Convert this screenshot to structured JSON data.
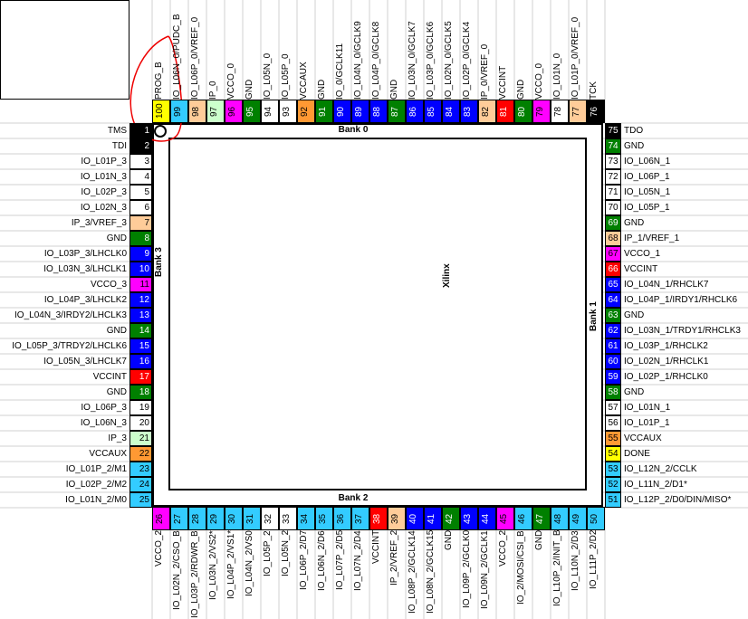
{
  "colors": {
    "black": "#000000",
    "white": "#ffffff",
    "green": "#008000",
    "blue": "#0000ff",
    "red": "#ff0000",
    "orange": "#ff9933",
    "peach": "#ffcc99",
    "magenta": "#ff00ff",
    "yellow": "#ffff00",
    "lime": "#ccffcc",
    "cyan": "#33ccff"
  },
  "banks": {
    "bank0": "Bank 0",
    "bank1": "Bank 1",
    "bank2": "Bank 2",
    "bank3": "Bank 3"
  },
  "center_label": "Xilinx",
  "left_pins": [
    {
      "label": "TMS",
      "num": "1",
      "color": "black"
    },
    {
      "label": "TDI",
      "num": "2",
      "color": "black"
    },
    {
      "label": "IO_L01P_3",
      "num": "3",
      "color": "white"
    },
    {
      "label": "IO_L01N_3",
      "num": "4",
      "color": "white"
    },
    {
      "label": "IO_L02P_3",
      "num": "5",
      "color": "white"
    },
    {
      "label": "IO_L02N_3",
      "num": "6",
      "color": "white"
    },
    {
      "label": "IP_3/VREF_3",
      "num": "7",
      "color": "peach"
    },
    {
      "label": "GND",
      "num": "8",
      "color": "green"
    },
    {
      "label": "IO_L03P_3/LHCLK0",
      "num": "9",
      "color": "blue"
    },
    {
      "label": "IO_L03N_3/LHCLK1",
      "num": "10",
      "color": "blue"
    },
    {
      "label": "VCCO_3",
      "num": "11",
      "color": "magenta"
    },
    {
      "label": "IO_L04P_3/LHCLK2",
      "num": "12",
      "color": "blue"
    },
    {
      "label": "IO_L04N_3/IRDY2/LHCLK3",
      "num": "13",
      "color": "blue"
    },
    {
      "label": "GND",
      "num": "14",
      "color": "green"
    },
    {
      "label": "IO_L05P_3/TRDY2/LHCLK6",
      "num": "15",
      "color": "blue"
    },
    {
      "label": "IO_L05N_3/LHCLK7",
      "num": "16",
      "color": "blue"
    },
    {
      "label": "VCCINT",
      "num": "17",
      "color": "red"
    },
    {
      "label": "GND",
      "num": "18",
      "color": "green"
    },
    {
      "label": "IO_L06P_3",
      "num": "19",
      "color": "white"
    },
    {
      "label": "IO_L06N_3",
      "num": "20",
      "color": "white"
    },
    {
      "label": "IP_3",
      "num": "21",
      "color": "lime"
    },
    {
      "label": "VCCAUX",
      "num": "22",
      "color": "orange"
    },
    {
      "label": "IO_L01P_2/M1",
      "num": "23",
      "color": "cyan"
    },
    {
      "label": "IO_L02P_2/M2",
      "num": "24",
      "color": "cyan"
    },
    {
      "label": "IO_L01N_2/M0",
      "num": "25",
      "color": "cyan"
    }
  ],
  "right_pins": [
    {
      "label": "TDO",
      "num": "75",
      "color": "black"
    },
    {
      "label": "GND",
      "num": "74",
      "color": "green"
    },
    {
      "label": "IO_L06N_1",
      "num": "73",
      "color": "white"
    },
    {
      "label": "IO_L06P_1",
      "num": "72",
      "color": "white"
    },
    {
      "label": "IO_L05N_1",
      "num": "71",
      "color": "white"
    },
    {
      "label": "IO_L05P_1",
      "num": "70",
      "color": "white"
    },
    {
      "label": "GND",
      "num": "69",
      "color": "green"
    },
    {
      "label": "IP_1/VREF_1",
      "num": "68",
      "color": "peach"
    },
    {
      "label": "VCCO_1",
      "num": "67",
      "color": "magenta"
    },
    {
      "label": "VCCINT",
      "num": "66",
      "color": "red"
    },
    {
      "label": "IO_L04N_1/RHCLK7",
      "num": "65",
      "color": "blue"
    },
    {
      "label": "IO_L04P_1/IRDY1/RHCLK6",
      "num": "64",
      "color": "blue"
    },
    {
      "label": "GND",
      "num": "63",
      "color": "green"
    },
    {
      "label": "IO_L03N_1/TRDY1/RHCLK3",
      "num": "62",
      "color": "blue"
    },
    {
      "label": "IO_L03P_1/RHCLK2",
      "num": "61",
      "color": "blue"
    },
    {
      "label": "IO_L02N_1/RHCLK1",
      "num": "60",
      "color": "blue"
    },
    {
      "label": "IO_L02P_1/RHCLK0",
      "num": "59",
      "color": "blue"
    },
    {
      "label": "GND",
      "num": "58",
      "color": "green"
    },
    {
      "label": "IO_L01N_1",
      "num": "57",
      "color": "white"
    },
    {
      "label": "IO_L01P_1",
      "num": "56",
      "color": "white"
    },
    {
      "label": "VCCAUX",
      "num": "55",
      "color": "orange"
    },
    {
      "label": "DONE",
      "num": "54",
      "color": "yellow"
    },
    {
      "label": "IO_L12N_2/CCLK",
      "num": "53",
      "color": "cyan"
    },
    {
      "label": "IO_L11N_2/D1*",
      "num": "52",
      "color": "cyan"
    },
    {
      "label": "IO_L12P_2/D0/DIN/MISO*",
      "num": "51",
      "color": "cyan"
    }
  ],
  "top_pins": [
    {
      "label": "PROG_B",
      "num": "100",
      "color": "yellow"
    },
    {
      "label": "IO_L06N_0/PUDC_B",
      "num": "99",
      "color": "cyan"
    },
    {
      "label": "IO_L06P_0/VREF_0",
      "num": "98",
      "color": "peach"
    },
    {
      "label": "IP_0",
      "num": "97",
      "color": "lime"
    },
    {
      "label": "VCCO_0",
      "num": "96",
      "color": "magenta"
    },
    {
      "label": "GND",
      "num": "95",
      "color": "green"
    },
    {
      "label": "IO_L05N_0",
      "num": "94",
      "color": "white"
    },
    {
      "label": "IO_L05P_0",
      "num": "93",
      "color": "white"
    },
    {
      "label": "VCCAUX",
      "num": "92",
      "color": "orange"
    },
    {
      "label": "GND",
      "num": "91",
      "color": "green"
    },
    {
      "label": "IO_0/GCLK11",
      "num": "90",
      "color": "blue"
    },
    {
      "label": "IO_L04N_0/GCLK9",
      "num": "89",
      "color": "blue"
    },
    {
      "label": "IO_L04P_0/GCLK8",
      "num": "88",
      "color": "blue"
    },
    {
      "label": "GND",
      "num": "87",
      "color": "green"
    },
    {
      "label": "IO_L03N_0/GCLK7",
      "num": "86",
      "color": "blue"
    },
    {
      "label": "IO_L03P_0/GCLK6",
      "num": "85",
      "color": "blue"
    },
    {
      "label": "IO_L02N_0/GCLK5",
      "num": "84",
      "color": "blue"
    },
    {
      "label": "IO_L02P_0/GCLK4",
      "num": "83",
      "color": "blue"
    },
    {
      "label": "IP_0/VREF_0",
      "num": "82",
      "color": "peach"
    },
    {
      "label": "VCCINT",
      "num": "81",
      "color": "red"
    },
    {
      "label": "GND",
      "num": "80",
      "color": "green"
    },
    {
      "label": "VCCO_0",
      "num": "79",
      "color": "magenta"
    },
    {
      "label": "IO_L01N_0",
      "num": "78",
      "color": "white"
    },
    {
      "label": "IO_L01P_0/VREF_0",
      "num": "77",
      "color": "peach"
    },
    {
      "label": "TCK",
      "num": "76",
      "color": "black"
    }
  ],
  "bottom_pins": [
    {
      "label": "VCCO_2",
      "num": "26",
      "color": "magenta"
    },
    {
      "label": "IO_L02N_2/CSO_B",
      "num": "27",
      "color": "cyan"
    },
    {
      "label": "IO_L03P_2/RDWR_B",
      "num": "28",
      "color": "cyan"
    },
    {
      "label": "IO_L03N_2/VS2*",
      "num": "29",
      "color": "cyan"
    },
    {
      "label": "IO_L04P_2/VS1*",
      "num": "30",
      "color": "cyan"
    },
    {
      "label": "IO_L04N_2/VS0",
      "num": "31",
      "color": "cyan"
    },
    {
      "label": "IO_L05P_2",
      "num": "32",
      "color": "white"
    },
    {
      "label": "IO_L05N_2",
      "num": "33",
      "color": "white"
    },
    {
      "label": "IO_L06P_2/D7",
      "num": "34",
      "color": "cyan"
    },
    {
      "label": "IO_L06N_2/D6",
      "num": "35",
      "color": "cyan"
    },
    {
      "label": "IO_L07P_2/D5",
      "num": "36",
      "color": "cyan"
    },
    {
      "label": "IO_L07N_2/D4",
      "num": "37",
      "color": "cyan"
    },
    {
      "label": "VCCINT",
      "num": "38",
      "color": "red"
    },
    {
      "label": "IP_2/VREF_2",
      "num": "39",
      "color": "peach"
    },
    {
      "label": "IO_L08P_2/GCLK14",
      "num": "40",
      "color": "blue"
    },
    {
      "label": "IO_L08N_2/GCLK15",
      "num": "41",
      "color": "blue"
    },
    {
      "label": "GND",
      "num": "42",
      "color": "green"
    },
    {
      "label": "IO_L09P_2/GCLK0",
      "num": "43",
      "color": "blue"
    },
    {
      "label": "IO_L09N_2/GCLK1",
      "num": "44",
      "color": "blue"
    },
    {
      "label": "VCCO_2",
      "num": "45",
      "color": "magenta"
    },
    {
      "label": "IO_2/MOSI/CSI_B",
      "num": "46",
      "color": "cyan"
    },
    {
      "label": "GND",
      "num": "47",
      "color": "green"
    },
    {
      "label": "IO_L10P_2/INIT_B",
      "num": "48",
      "color": "cyan"
    },
    {
      "label": "IO_L10N_2/D3",
      "num": "49",
      "color": "cyan"
    },
    {
      "label": "IO_L11P_2/D2",
      "num": "50",
      "color": "cyan"
    }
  ]
}
